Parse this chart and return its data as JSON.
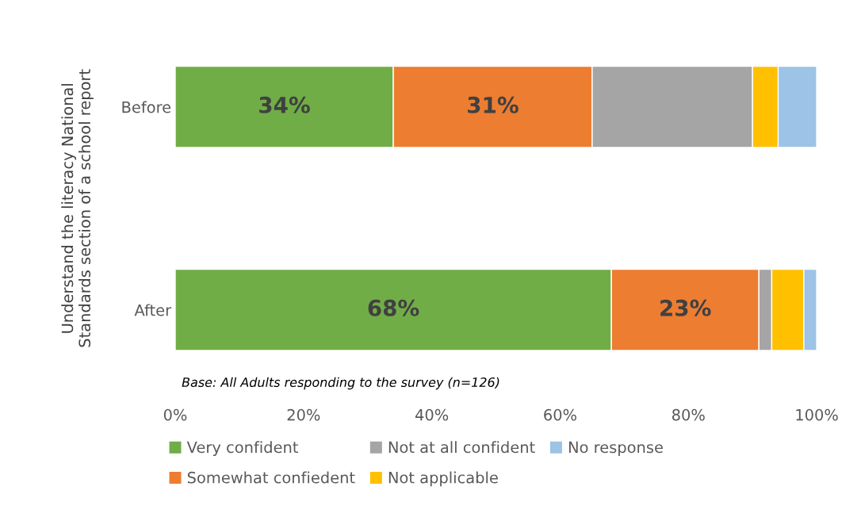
{
  "chart_data": {
    "type": "bar",
    "orientation": "horizontal",
    "stacked": true,
    "ylabel": "Understand the literacy National\nStandards section of a school report",
    "categories": [
      "Before",
      "After"
    ],
    "series": [
      {
        "name": "Very confident",
        "color": "#70ad47",
        "values": [
          34,
          68
        ],
        "value_labels": [
          "34%",
          "68%"
        ]
      },
      {
        "name": "Somewhat confiedent",
        "color": "#ed7d31",
        "values": [
          31,
          23
        ],
        "value_labels": [
          "31%",
          "23%"
        ]
      },
      {
        "name": "Not at all confident",
        "color": "#a5a5a5",
        "values": [
          25,
          2
        ]
      },
      {
        "name": "Not applicable",
        "color": "#ffc000",
        "values": [
          4,
          5
        ]
      },
      {
        "name": "No response",
        "color": "#9dc3e6",
        "values": [
          6,
          2
        ]
      }
    ],
    "xlim": [
      0,
      100
    ],
    "xticks": [
      {
        "value": 0,
        "label": "0%"
      },
      {
        "value": 20,
        "label": "20%"
      },
      {
        "value": 40,
        "label": "40%"
      },
      {
        "value": 60,
        "label": "60%"
      },
      {
        "value": 80,
        "label": "80%"
      },
      {
        "value": 100,
        "label": "100%"
      }
    ],
    "annotations": [
      "Base: All Adults responding to the survey (n=126)"
    ],
    "grid": false,
    "legend": "bottom"
  }
}
